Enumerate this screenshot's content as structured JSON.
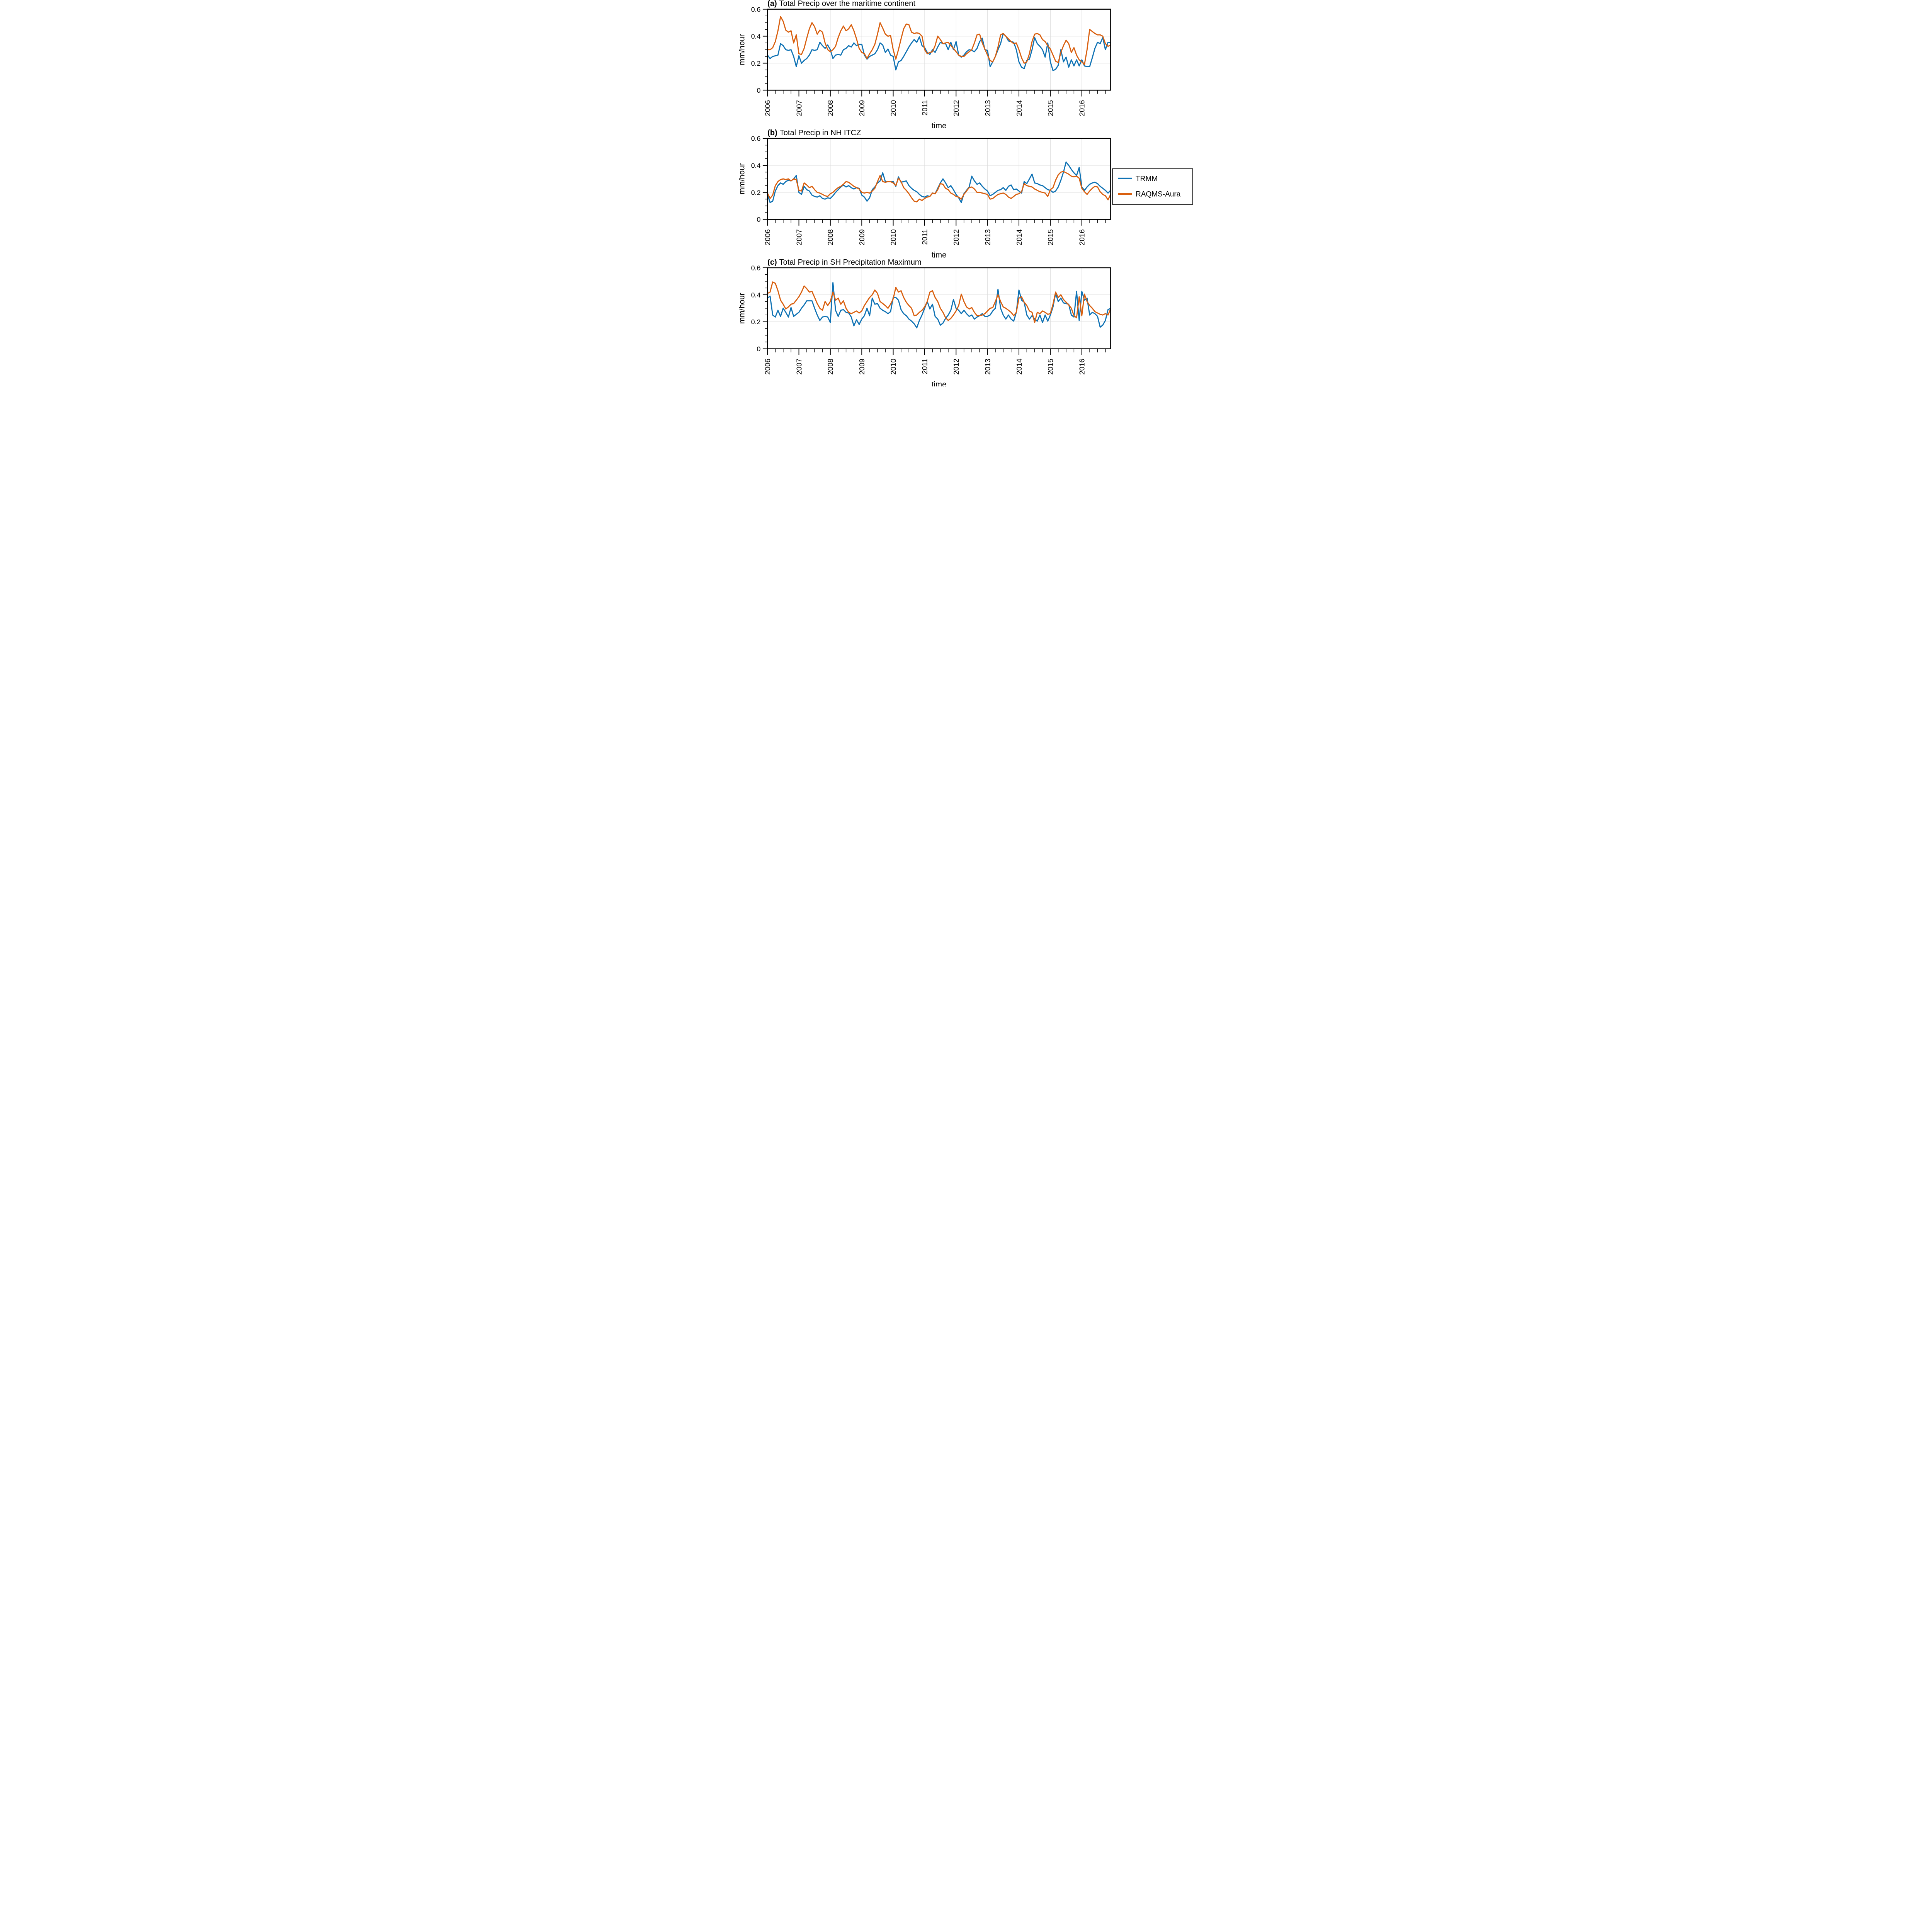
{
  "figure": {
    "background": "#ffffff",
    "ylabel": "mm/hour",
    "xlabel": "time",
    "ytick_labels": [
      "0",
      "0.2",
      "0.4",
      "0.6"
    ],
    "yticks": [
      0,
      0.2,
      0.4,
      0.6
    ],
    "year_labels": [
      "2006",
      "2007",
      "2008",
      "2009",
      "2010",
      "2011",
      "2012",
      "2013",
      "2014",
      "2015",
      "2016"
    ],
    "frame_color": "#000000",
    "grid_color": "#dcdcdc"
  },
  "legend": {
    "border_color": "#2b2b2b",
    "items": [
      {
        "label": "TRMM",
        "color": "#0f72b4"
      },
      {
        "label": "RAQMS-Aura",
        "color": "#d95f0e"
      }
    ]
  },
  "chart_data": [
    {
      "type": "line",
      "title_prefix": "(a)",
      "title": "Total Precip over the maritime continent",
      "xlabel": "time",
      "ylabel": "mm/hour",
      "ylim": [
        0,
        0.6
      ],
      "x_start_year": 2006,
      "x_cadence": "monthly",
      "x_range_years": [
        2006,
        2017
      ],
      "grid": true,
      "series": [
        {
          "name": "TRMM",
          "color": "#0f72b4",
          "values": [
            0.26,
            0.235,
            0.25,
            0.255,
            0.26,
            0.345,
            0.33,
            0.3,
            0.295,
            0.3,
            0.25,
            0.175,
            0.255,
            0.2,
            0.22,
            0.235,
            0.26,
            0.3,
            0.295,
            0.3,
            0.355,
            0.33,
            0.31,
            0.335,
            0.3,
            0.235,
            0.26,
            0.265,
            0.26,
            0.3,
            0.31,
            0.33,
            0.32,
            0.35,
            0.33,
            0.34,
            0.34,
            0.26,
            0.23,
            0.25,
            0.26,
            0.27,
            0.3,
            0.35,
            0.335,
            0.28,
            0.305,
            0.26,
            0.25,
            0.15,
            0.21,
            0.22,
            0.25,
            0.285,
            0.32,
            0.35,
            0.375,
            0.355,
            0.395,
            0.33,
            0.315,
            0.28,
            0.265,
            0.3,
            0.28,
            0.32,
            0.355,
            0.345,
            0.345,
            0.3,
            0.355,
            0.3,
            0.36,
            0.26,
            0.245,
            0.26,
            0.285,
            0.3,
            0.295,
            0.285,
            0.31,
            0.36,
            0.385,
            0.3,
            0.295,
            0.175,
            0.21,
            0.25,
            0.3,
            0.345,
            0.42,
            0.4,
            0.365,
            0.36,
            0.355,
            0.3,
            0.21,
            0.17,
            0.16,
            0.22,
            0.23,
            0.3,
            0.39,
            0.345,
            0.325,
            0.3,
            0.245,
            0.35,
            0.21,
            0.145,
            0.155,
            0.185,
            0.3,
            0.21,
            0.245,
            0.17,
            0.225,
            0.18,
            0.225,
            0.18,
            0.225,
            0.18,
            0.175,
            0.175,
            0.24,
            0.31,
            0.355,
            0.345,
            0.39,
            0.3,
            0.355,
            0.35
          ]
        },
        {
          "name": "RAQMS-Aura",
          "color": "#d95f0e",
          "values": [
            0.3,
            0.3,
            0.315,
            0.36,
            0.44,
            0.545,
            0.51,
            0.445,
            0.43,
            0.44,
            0.35,
            0.41,
            0.27,
            0.265,
            0.31,
            0.385,
            0.455,
            0.5,
            0.47,
            0.415,
            0.445,
            0.43,
            0.35,
            0.3,
            0.285,
            0.3,
            0.325,
            0.39,
            0.44,
            0.475,
            0.44,
            0.455,
            0.485,
            0.44,
            0.38,
            0.31,
            0.28,
            0.27,
            0.235,
            0.27,
            0.3,
            0.34,
            0.415,
            0.5,
            0.46,
            0.415,
            0.4,
            0.405,
            0.3,
            0.23,
            0.3,
            0.38,
            0.455,
            0.49,
            0.485,
            0.43,
            0.42,
            0.425,
            0.42,
            0.4,
            0.3,
            0.27,
            0.28,
            0.285,
            0.33,
            0.4,
            0.375,
            0.345,
            0.35,
            0.355,
            0.33,
            0.31,
            0.285,
            0.26,
            0.25,
            0.25,
            0.27,
            0.285,
            0.3,
            0.35,
            0.41,
            0.415,
            0.35,
            0.305,
            0.26,
            0.22,
            0.21,
            0.25,
            0.32,
            0.41,
            0.42,
            0.4,
            0.38,
            0.36,
            0.345,
            0.35,
            0.3,
            0.24,
            0.2,
            0.21,
            0.27,
            0.36,
            0.415,
            0.42,
            0.41,
            0.375,
            0.36,
            0.33,
            0.305,
            0.26,
            0.215,
            0.205,
            0.28,
            0.33,
            0.37,
            0.345,
            0.28,
            0.315,
            0.26,
            0.225,
            0.21,
            0.19,
            0.3,
            0.45,
            0.435,
            0.42,
            0.41,
            0.41,
            0.4,
            0.345,
            0.325,
            0.335
          ]
        }
      ]
    },
    {
      "type": "line",
      "title_prefix": "(b)",
      "title": "Total Precip in NH ITCZ",
      "xlabel": "time",
      "ylabel": "mm/hour",
      "ylim": [
        0,
        0.6
      ],
      "x_start_year": 2006,
      "x_cadence": "monthly",
      "x_range_years": [
        2006,
        2017
      ],
      "grid": true,
      "series": [
        {
          "name": "TRMM",
          "color": "#0f72b4",
          "values": [
            0.185,
            0.125,
            0.135,
            0.21,
            0.25,
            0.27,
            0.26,
            0.28,
            0.29,
            0.285,
            0.3,
            0.325,
            0.2,
            0.185,
            0.245,
            0.22,
            0.21,
            0.18,
            0.17,
            0.165,
            0.175,
            0.155,
            0.15,
            0.16,
            0.155,
            0.175,
            0.2,
            0.22,
            0.24,
            0.255,
            0.24,
            0.25,
            0.235,
            0.225,
            0.235,
            0.23,
            0.18,
            0.165,
            0.135,
            0.16,
            0.22,
            0.24,
            0.27,
            0.285,
            0.345,
            0.28,
            0.28,
            0.28,
            0.28,
            0.245,
            0.315,
            0.275,
            0.28,
            0.285,
            0.25,
            0.23,
            0.215,
            0.205,
            0.185,
            0.17,
            0.165,
            0.175,
            0.17,
            0.195,
            0.19,
            0.23,
            0.27,
            0.3,
            0.27,
            0.235,
            0.25,
            0.22,
            0.185,
            0.16,
            0.125,
            0.19,
            0.215,
            0.24,
            0.32,
            0.285,
            0.26,
            0.27,
            0.245,
            0.225,
            0.21,
            0.175,
            0.185,
            0.2,
            0.215,
            0.22,
            0.235,
            0.215,
            0.245,
            0.255,
            0.22,
            0.225,
            0.21,
            0.195,
            0.28,
            0.265,
            0.3,
            0.335,
            0.27,
            0.265,
            0.255,
            0.25,
            0.235,
            0.22,
            0.215,
            0.2,
            0.21,
            0.24,
            0.29,
            0.35,
            0.425,
            0.4,
            0.37,
            0.345,
            0.325,
            0.385,
            0.24,
            0.215,
            0.24,
            0.26,
            0.27,
            0.275,
            0.265,
            0.245,
            0.23,
            0.215,
            0.195,
            0.215
          ]
        },
        {
          "name": "RAQMS-Aura",
          "color": "#d95f0e",
          "values": [
            0.195,
            0.155,
            0.18,
            0.25,
            0.28,
            0.295,
            0.3,
            0.295,
            0.3,
            0.285,
            0.3,
            0.295,
            0.215,
            0.21,
            0.27,
            0.255,
            0.235,
            0.245,
            0.22,
            0.2,
            0.195,
            0.185,
            0.175,
            0.17,
            0.19,
            0.2,
            0.22,
            0.235,
            0.245,
            0.26,
            0.28,
            0.275,
            0.26,
            0.245,
            0.235,
            0.225,
            0.2,
            0.195,
            0.2,
            0.195,
            0.21,
            0.23,
            0.28,
            0.325,
            0.28,
            0.275,
            0.28,
            0.28,
            0.27,
            0.25,
            0.305,
            0.28,
            0.235,
            0.215,
            0.19,
            0.16,
            0.135,
            0.13,
            0.15,
            0.14,
            0.155,
            0.165,
            0.17,
            0.195,
            0.19,
            0.22,
            0.265,
            0.26,
            0.23,
            0.22,
            0.195,
            0.185,
            0.17,
            0.165,
            0.15,
            0.185,
            0.21,
            0.235,
            0.24,
            0.225,
            0.2,
            0.2,
            0.195,
            0.19,
            0.185,
            0.15,
            0.155,
            0.17,
            0.185,
            0.19,
            0.195,
            0.185,
            0.165,
            0.155,
            0.17,
            0.185,
            0.19,
            0.205,
            0.265,
            0.25,
            0.245,
            0.24,
            0.225,
            0.215,
            0.205,
            0.2,
            0.195,
            0.17,
            0.22,
            0.235,
            0.29,
            0.33,
            0.35,
            0.355,
            0.345,
            0.335,
            0.32,
            0.315,
            0.32,
            0.305,
            0.23,
            0.205,
            0.185,
            0.21,
            0.23,
            0.245,
            0.24,
            0.205,
            0.185,
            0.175,
            0.145,
            0.185
          ]
        }
      ]
    },
    {
      "type": "line",
      "title_prefix": "(c)",
      "title": "Total Precip in SH Precipitation Maximum",
      "xlabel": "time",
      "ylabel": "mm/hour",
      "ylim": [
        0,
        0.6
      ],
      "x_start_year": 2006,
      "x_cadence": "monthly",
      "x_range_years": [
        2006,
        2017
      ],
      "grid": true,
      "series": [
        {
          "name": "TRMM",
          "color": "#0f72b4",
          "values": [
            0.375,
            0.39,
            0.25,
            0.235,
            0.285,
            0.24,
            0.3,
            0.27,
            0.235,
            0.305,
            0.24,
            0.255,
            0.27,
            0.3,
            0.325,
            0.355,
            0.355,
            0.355,
            0.3,
            0.25,
            0.21,
            0.235,
            0.24,
            0.235,
            0.195,
            0.49,
            0.285,
            0.24,
            0.285,
            0.29,
            0.27,
            0.265,
            0.235,
            0.17,
            0.215,
            0.18,
            0.22,
            0.245,
            0.3,
            0.245,
            0.375,
            0.33,
            0.335,
            0.3,
            0.285,
            0.275,
            0.26,
            0.275,
            0.38,
            0.38,
            0.36,
            0.29,
            0.26,
            0.245,
            0.22,
            0.205,
            0.185,
            0.155,
            0.21,
            0.25,
            0.3,
            0.35,
            0.295,
            0.33,
            0.24,
            0.22,
            0.175,
            0.19,
            0.225,
            0.25,
            0.285,
            0.365,
            0.3,
            0.285,
            0.26,
            0.285,
            0.26,
            0.24,
            0.25,
            0.22,
            0.235,
            0.245,
            0.26,
            0.24,
            0.24,
            0.25,
            0.28,
            0.3,
            0.44,
            0.3,
            0.25,
            0.22,
            0.25,
            0.22,
            0.205,
            0.27,
            0.435,
            0.36,
            0.345,
            0.25,
            0.22,
            0.245,
            0.22,
            0.205,
            0.25,
            0.195,
            0.25,
            0.205,
            0.25,
            0.31,
            0.41,
            0.35,
            0.375,
            0.34,
            0.335,
            0.33,
            0.25,
            0.235,
            0.425,
            0.21,
            0.425,
            0.36,
            0.375,
            0.25,
            0.27,
            0.26,
            0.24,
            0.16,
            0.175,
            0.21,
            0.29,
            0.3
          ]
        },
        {
          "name": "RAQMS-Aura",
          "color": "#d95f0e",
          "values": [
            0.41,
            0.42,
            0.495,
            0.485,
            0.43,
            0.36,
            0.33,
            0.295,
            0.31,
            0.33,
            0.335,
            0.36,
            0.385,
            0.42,
            0.465,
            0.445,
            0.42,
            0.425,
            0.38,
            0.335,
            0.3,
            0.285,
            0.35,
            0.32,
            0.35,
            0.42,
            0.36,
            0.375,
            0.33,
            0.355,
            0.3,
            0.27,
            0.26,
            0.27,
            0.28,
            0.265,
            0.28,
            0.32,
            0.35,
            0.38,
            0.4,
            0.435,
            0.41,
            0.35,
            0.335,
            0.32,
            0.3,
            0.33,
            0.37,
            0.455,
            0.42,
            0.43,
            0.38,
            0.345,
            0.32,
            0.3,
            0.245,
            0.25,
            0.27,
            0.285,
            0.31,
            0.35,
            0.42,
            0.43,
            0.38,
            0.35,
            0.3,
            0.27,
            0.23,
            0.21,
            0.225,
            0.25,
            0.28,
            0.32,
            0.405,
            0.35,
            0.31,
            0.295,
            0.305,
            0.27,
            0.245,
            0.245,
            0.25,
            0.26,
            0.28,
            0.3,
            0.305,
            0.35,
            0.4,
            0.35,
            0.31,
            0.3,
            0.285,
            0.27,
            0.245,
            0.27,
            0.375,
            0.385,
            0.345,
            0.32,
            0.28,
            0.27,
            0.195,
            0.27,
            0.26,
            0.28,
            0.27,
            0.255,
            0.26,
            0.33,
            0.42,
            0.38,
            0.4,
            0.365,
            0.345,
            0.325,
            0.3,
            0.245,
            0.23,
            0.385,
            0.245,
            0.405,
            0.35,
            0.32,
            0.3,
            0.275,
            0.265,
            0.255,
            0.25,
            0.26,
            0.25,
            0.295
          ]
        }
      ]
    }
  ]
}
